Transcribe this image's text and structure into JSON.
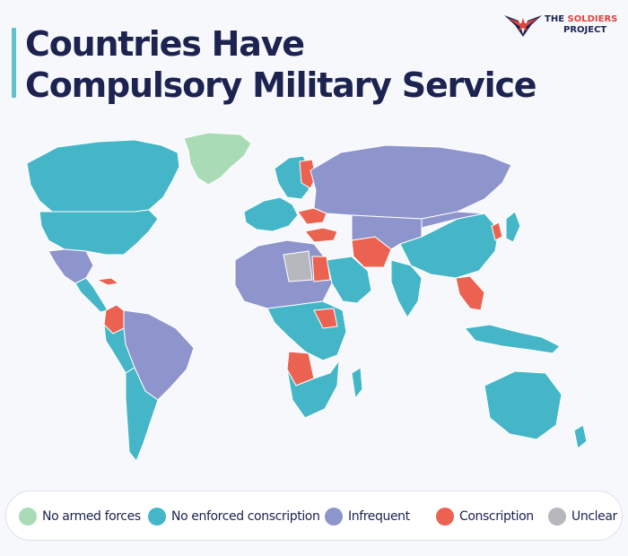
{
  "title": {
    "line1": "Countries Have",
    "line2": "Compulsory Military Service"
  },
  "logo": {
    "word1": "THE",
    "word2": "SOLDIERS",
    "word3": "PROJECT"
  },
  "colors": {
    "no_armed_forces": "#a8dbb6",
    "no_enforced_conscription": "#45b6c7",
    "infrequent": "#8e95cc",
    "conscription": "#ec6250",
    "unclear": "#b7b8bd",
    "ocean": "#f7f8fc",
    "title": "#1c2350"
  },
  "legend": [
    {
      "label": "No armed forces",
      "color": "#a8dbb6"
    },
    {
      "label": "No enforced conscription",
      "color": "#45b6c7"
    },
    {
      "label": "Infrequent",
      "color": "#8e95cc"
    },
    {
      "label": "Conscription",
      "color": "#ec6250"
    },
    {
      "label": "Unclear",
      "color": "#b7b8bd"
    }
  ]
}
